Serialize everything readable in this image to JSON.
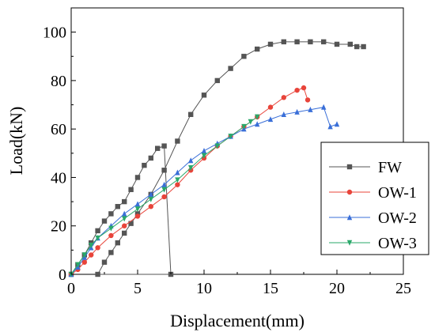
{
  "chart_data": {
    "type": "line",
    "title": "",
    "xlabel": "Displacement(mm)",
    "ylabel": "Load(kN)",
    "xlim": [
      0,
      25
    ],
    "ylim": [
      0,
      110
    ],
    "xticks": [
      "0",
      "5",
      "10",
      "15",
      "20",
      "25"
    ],
    "yticks": [
      "0",
      "20",
      "40",
      "60",
      "80",
      "100"
    ],
    "grid": false,
    "legend_position": "right",
    "series": [
      {
        "name": "FW",
        "color": "#555555",
        "marker": "square",
        "x": [
          0,
          0.5,
          1.0,
          1.5,
          2.0,
          2.5,
          3.0,
          3.5,
          4.0,
          4.5,
          5.0,
          5.5,
          6.0,
          6.5,
          7.0,
          7.5,
          2.0,
          2.5,
          3.0,
          3.5,
          4.0,
          4.5,
          5.0,
          6.0,
          7.0,
          8.0,
          9.0,
          10.0,
          11.0,
          12.0,
          13.0,
          14.0,
          15.0,
          16.0,
          17.0,
          18.0,
          19.0,
          20.0,
          21.0,
          21.5,
          22.0
        ],
        "y": [
          0,
          4,
          8,
          13,
          18,
          22,
          25,
          28,
          30,
          35,
          40,
          45,
          48,
          52,
          53,
          0,
          0,
          5,
          9,
          13,
          17,
          21,
          25,
          33,
          43,
          55,
          66,
          74,
          80,
          85,
          90,
          93,
          95,
          96,
          96,
          96,
          96,
          95,
          95,
          94,
          94
        ]
      },
      {
        "name": "OW-1",
        "color": "#e8443a",
        "marker": "circle",
        "x": [
          0,
          0.5,
          1.0,
          1.5,
          2.0,
          3.0,
          4.0,
          5.0,
          6.0,
          7.0,
          8.0,
          9.0,
          10.0,
          11.0,
          12.0,
          13.0,
          14.0,
          15.0,
          16.0,
          17.0,
          17.5,
          17.8
        ],
        "y": [
          0,
          2,
          5,
          8,
          11,
          16,
          20,
          24,
          28,
          32,
          37,
          43,
          48,
          53,
          57,
          61,
          65,
          69,
          73,
          76,
          77,
          72
        ]
      },
      {
        "name": "OW-2",
        "color": "#3a6fd8",
        "marker": "triangle-up",
        "x": [
          0,
          0.5,
          1.0,
          1.5,
          2.0,
          3.0,
          4.0,
          5.0,
          6.0,
          7.0,
          8.0,
          9.0,
          10.0,
          11.0,
          12.0,
          13.0,
          14.0,
          15.0,
          16.0,
          17.0,
          18.0,
          19.0,
          19.5,
          20.0
        ],
        "y": [
          0,
          3,
          7,
          11,
          15,
          20,
          25,
          29,
          33,
          37,
          42,
          47,
          51,
          54,
          57,
          60,
          62,
          64,
          66,
          67,
          68,
          69,
          61,
          62
        ]
      },
      {
        "name": "OW-3",
        "color": "#2aa86a",
        "marker": "triangle-down",
        "x": [
          0,
          0.5,
          1.0,
          1.5,
          2.0,
          3.0,
          4.0,
          5.0,
          6.0,
          7.0,
          8.0,
          9.0,
          10.0,
          11.0,
          12.0,
          13.0,
          13.5,
          14.0
        ],
        "y": [
          0,
          4,
          8,
          12,
          15,
          19,
          23,
          27,
          31,
          35,
          39,
          44,
          49,
          53,
          57,
          61,
          63,
          65
        ]
      }
    ]
  }
}
